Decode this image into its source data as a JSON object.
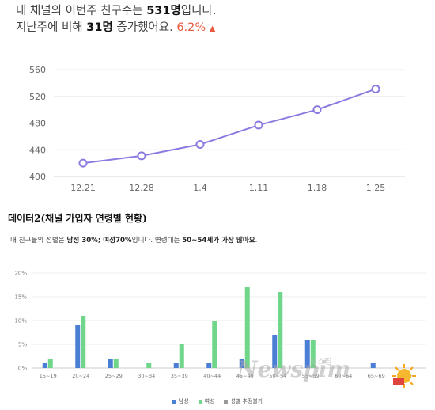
{
  "summary": {
    "line1_pre": "내 채널의 이번주 친구수는 ",
    "line1_count": "531명",
    "line1_post": "입니다.",
    "line2_pre": "지난주에 비해 ",
    "line2_count": "31명",
    "line2_mid": " 증가했어요. ",
    "line2_rate": "6.2%",
    "trend_icon": "triangle-up-icon"
  },
  "section_title": "데이터2(채널 가입자 연령별 현황)",
  "gender_summary": {
    "pre": "내 친구들의 성별은 ",
    "male": "남성 30%",
    "sep": "; ",
    "female": "여성70%",
    "mid": "입니다. 연령대는 ",
    "age": "50~54세가 가장 많아요",
    "post": "."
  },
  "chart_data": [
    {
      "type": "line",
      "x": [
        "12.21",
        "12.28",
        "1.4",
        "1.11",
        "1.18",
        "1.25"
      ],
      "values": [
        420,
        431,
        448,
        477,
        500,
        531
      ],
      "ylim": [
        400,
        560
      ],
      "yticks": [
        400,
        440,
        480,
        520,
        560
      ],
      "grid": true,
      "color": "#8b7be0"
    },
    {
      "type": "bar",
      "categories": [
        "15~19",
        "20~24",
        "25~29",
        "30~34",
        "35~39",
        "40~44",
        "45~49",
        "50~54",
        "55~59",
        "60~64",
        "65~69",
        "70~"
      ],
      "series": [
        {
          "name": "남성",
          "color": "#4b7fd6",
          "values": [
            1,
            9,
            2,
            0,
            1,
            1,
            2,
            7,
            6,
            0,
            1,
            0
          ]
        },
        {
          "name": "여성",
          "color": "#6fd68a",
          "values": [
            2,
            11,
            2,
            1,
            5,
            10,
            17,
            16,
            6,
            0,
            0,
            0
          ]
        },
        {
          "name": "성별 추정불가",
          "color": "#999999",
          "values": [
            0,
            0,
            0,
            0,
            0,
            0,
            0,
            0,
            0,
            0,
            0,
            0
          ]
        }
      ],
      "ylim": [
        0,
        20
      ],
      "yticks": [
        0,
        5,
        10,
        15,
        20
      ],
      "ytick_labels": [
        "0%",
        "5%",
        "10%",
        "15%",
        "20%"
      ],
      "grid": true,
      "legend": "bottom"
    }
  ],
  "watermark": {
    "text": "Newspim",
    "sub": "뉴스핌"
  }
}
